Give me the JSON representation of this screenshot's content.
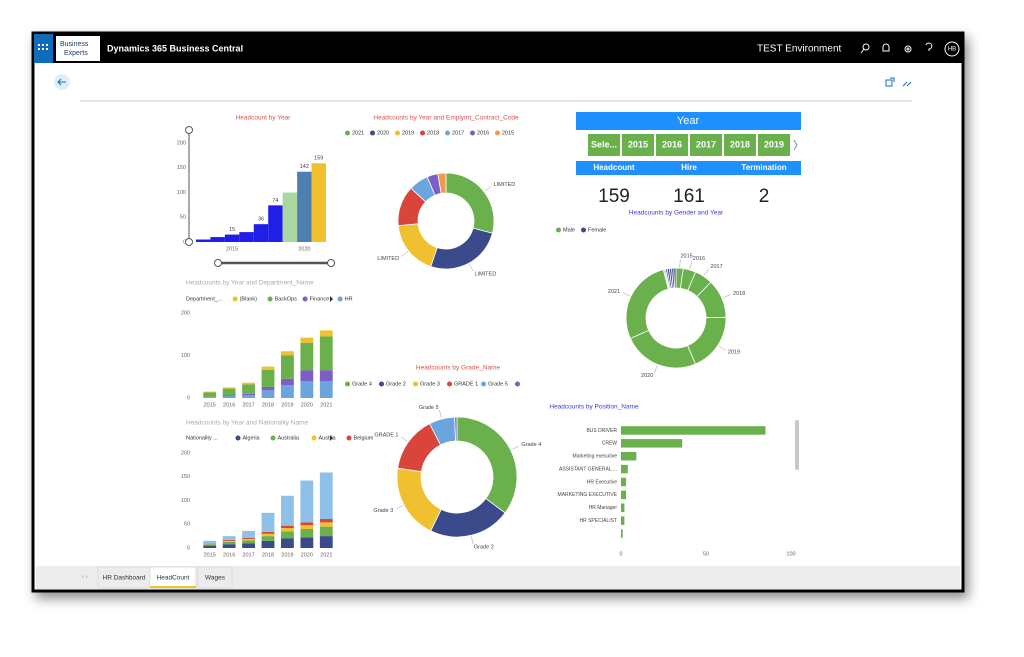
{
  "app": {
    "title": "Dynamics 365 Business Central",
    "environment": "TEST Environment",
    "user": "HB",
    "logo": [
      "Business",
      "Experts"
    ]
  },
  "tabs": [
    "HR Dashboard",
    "HeadCount",
    "Wages"
  ],
  "slicer": {
    "title": "Year",
    "options": [
      "Sele...",
      "2015",
      "2016",
      "2017",
      "2018",
      "2019"
    ]
  },
  "kpis": [
    {
      "label": "Headcount",
      "value": 159
    },
    {
      "label": "Hire",
      "value": 161
    },
    {
      "label": "Termination",
      "value": 2
    }
  ],
  "chart_data": [
    {
      "type": "bar",
      "title": "Headcount by Year",
      "title_color": "#d9534f",
      "categories": [
        null,
        null,
        "2015",
        null,
        null,
        null,
        null,
        "2020",
        null
      ],
      "values": [
        5,
        10,
        15,
        20,
        36,
        74,
        100,
        142,
        159
      ],
      "value_labels": [
        null,
        null,
        "15",
        null,
        "36",
        "74",
        null,
        "142",
        "159"
      ],
      "colors": [
        "#1f1fe8",
        "#1f1fe8",
        "#1f1fe8",
        "#1f1fe8",
        "#1f1fe8",
        "#1f1fe8",
        "#a8d8a0",
        "#4f7fb0",
        "#f0c030"
      ],
      "ylim": [
        0,
        200
      ],
      "yticks": [
        0,
        50,
        100,
        150,
        200
      ],
      "grid": false
    },
    {
      "type": "donut",
      "title": "Headcounts by Year and Emplymt_Contract_Code",
      "title_color": "#d9534f",
      "categories": [
        "2021",
        "2020",
        "2019",
        "2018",
        "2017",
        "2016",
        "2015"
      ],
      "values": [
        159,
        142,
        100,
        74,
        36,
        20,
        15
      ],
      "colors": [
        "#6ab04c",
        "#3b4a8a",
        "#f0c030",
        "#d9443b",
        "#6aa5dd",
        "#7b5fc7",
        "#f09a4a"
      ],
      "slice_labels": [
        "LIMITED",
        "LIMITED",
        "LIMITED",
        null,
        null,
        null,
        null
      ]
    },
    {
      "type": "stacked_bar",
      "title": "Headcounts by Year and Department_Name",
      "title_color": "#aaaaaa",
      "legend_title": "Department_...",
      "reverse_stack": true,
      "categories": [
        "2015",
        "2016",
        "2017",
        "2018",
        "2019",
        "2020",
        "2021"
      ],
      "series": [
        {
          "name": "(Blank)",
          "color": "#f0c030",
          "values": [
            2,
            3,
            4,
            8,
            10,
            12,
            14
          ]
        },
        {
          "name": "BackOps",
          "color": "#6ab04c",
          "values": [
            10,
            15,
            22,
            40,
            55,
            65,
            80
          ]
        },
        {
          "name": "Finance",
          "color": "#7b5fc7",
          "values": [
            1,
            2,
            3,
            8,
            15,
            25,
            25
          ]
        },
        {
          "name": "HR",
          "color": "#6aa5dd",
          "values": [
            2,
            5,
            7,
            18,
            30,
            40,
            40
          ]
        }
      ],
      "ylim": [
        0,
        200
      ],
      "yticks": [
        0,
        100,
        200
      ],
      "grid": false
    },
    {
      "type": "stacked_bar",
      "title": "Headcounts by Year and Nationality Name",
      "title_color": "#aaaaaa",
      "legend_title": "Nationality ...",
      "reverse_stack": false,
      "categories": [
        "2015",
        "2016",
        "2017",
        "2018",
        "2019",
        "2020",
        "2021"
      ],
      "series": [
        {
          "name": "Algeria",
          "color": "#3b4a8a",
          "values": [
            5,
            8,
            10,
            15,
            20,
            22,
            25
          ]
        },
        {
          "name": "Australia",
          "color": "#6ab04c",
          "values": [
            3,
            5,
            6,
            10,
            15,
            18,
            20
          ]
        },
        {
          "name": "Austria",
          "color": "#f0c030",
          "values": [
            1,
            2,
            3,
            5,
            7,
            8,
            9
          ]
        },
        {
          "name": "Belgium",
          "color": "#d9443b",
          "values": [
            1,
            2,
            2,
            4,
            5,
            6,
            7
          ]
        },
        {
          "name": null,
          "color": "#8fc0e8",
          "values": [
            5,
            8,
            15,
            40,
            63,
            88,
            98
          ]
        }
      ],
      "ylim": [
        0,
        200
      ],
      "yticks": [
        0,
        50,
        100,
        150,
        200
      ],
      "grid": false
    },
    {
      "type": "donut",
      "title": "Headcounts by Grade_Name",
      "title_color": "#d9534f",
      "categories": [
        "Grade 4",
        "Grade 2",
        "Grade 3",
        "GRADE 1",
        "Grade 5",
        null
      ],
      "values": [
        56,
        35,
        32,
        24,
        11,
        1
      ],
      "colors": [
        "#6ab04c",
        "#3b4a8a",
        "#f0c030",
        "#d9443b",
        "#6aa5dd",
        "#7b5fc7"
      ]
    },
    {
      "type": "donut",
      "title": "Headcounts by Gender and Year",
      "title_color": "#3b3bd9",
      "categories": [
        "2015",
        "2016",
        "2017",
        "2018",
        "2019",
        "2020",
        "2021"
      ],
      "series": [
        {
          "name": "Male",
          "color": "#6ab04c",
          "values": [
            13,
            23,
            33,
            70,
            106,
            138,
            155
          ]
        },
        {
          "name": "Female",
          "color": "#3b4a8a",
          "values": [
            2,
            2,
            3,
            4,
            4,
            4,
            4
          ]
        }
      ]
    },
    {
      "type": "hbar",
      "title": "Headcounts by Position_Name",
      "title_color": "#3b3bd9",
      "color": "#6ab04c",
      "categories": [
        "BUS DRIVER",
        "CREW",
        "Marketing executive",
        "ASSISTANT GENERAL ...",
        "HR Executive",
        "MARKETING EXECUTIVE",
        "HR Manager",
        "HR SPECIALIST",
        null
      ],
      "values": [
        85,
        36,
        9,
        4,
        3,
        3,
        2,
        2,
        1
      ],
      "xlim": [
        0,
        100
      ],
      "xticks": [
        0,
        50,
        100
      ],
      "grid": false
    }
  ]
}
